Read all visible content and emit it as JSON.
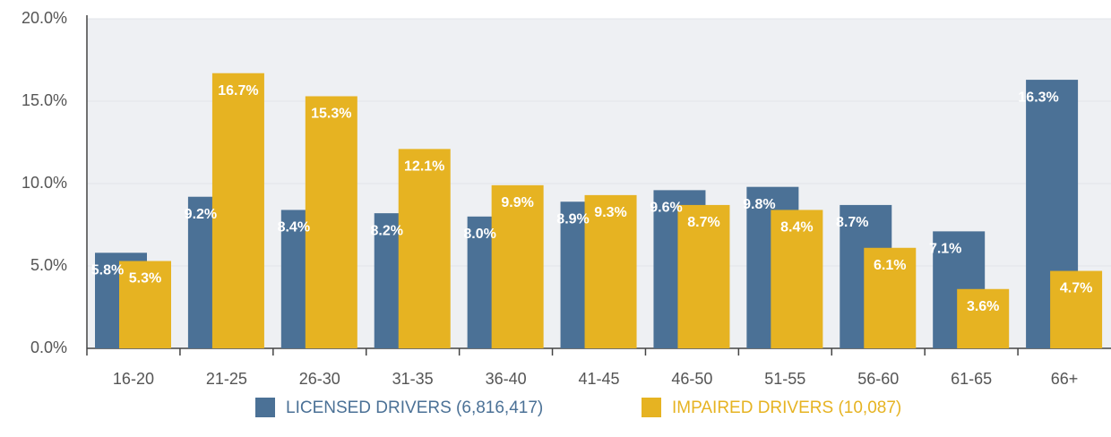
{
  "chart_data": {
    "type": "bar",
    "categories": [
      "16-20",
      "21-25",
      "26-30",
      "31-35",
      "36-40",
      "41-45",
      "46-50",
      "51-55",
      "56-60",
      "61-65",
      "66+"
    ],
    "series": [
      {
        "name": "LICENSED DRIVERS (6,816,417)",
        "color": "#4b7196",
        "values": [
          5.8,
          9.2,
          8.4,
          8.2,
          8.0,
          8.9,
          9.6,
          9.8,
          8.7,
          7.1,
          16.3
        ],
        "value_labels": [
          "5.8%",
          "9.2%",
          "8.4%",
          "8.2%",
          "8.0%",
          "8.9%",
          "9.6%",
          "9.8%",
          "8.7%",
          "7.1%",
          "16.3%"
        ]
      },
      {
        "name": "IMPAIRED DRIVERS (10,087)",
        "color": "#e6b322",
        "values": [
          5.3,
          16.7,
          15.3,
          12.1,
          9.9,
          9.3,
          8.7,
          8.4,
          6.1,
          3.6,
          4.7
        ],
        "value_labels": [
          "5.3%",
          "16.7%",
          "15.3%",
          "12.1%",
          "9.9%",
          "9.3%",
          "8.7%",
          "8.4%",
          "6.1%",
          "3.6%",
          "4.7%"
        ]
      }
    ],
    "ylim": [
      0,
      20
    ],
    "yticks": [
      {
        "value": 0,
        "label": "0.0%"
      },
      {
        "value": 5,
        "label": "5.0%"
      },
      {
        "value": 10,
        "label": "10.0%"
      },
      {
        "value": 15,
        "label": "15.0%"
      },
      {
        "value": 20,
        "label": "20.0%"
      }
    ],
    "grid": true,
    "legend": "bottom"
  }
}
